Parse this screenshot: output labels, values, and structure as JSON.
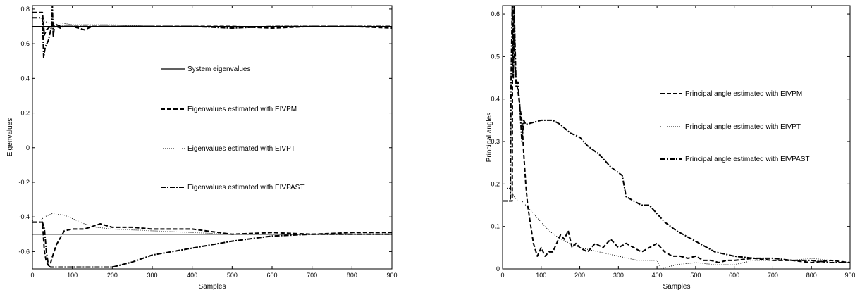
{
  "chart_data": [
    {
      "type": "line",
      "xlabel": "Samples",
      "ylabel": "Eigenvalues",
      "xlim": [
        0,
        900
      ],
      "ylim": [
        -0.7,
        0.82
      ],
      "xticks": [
        0,
        100,
        200,
        300,
        400,
        500,
        600,
        700,
        800,
        900
      ],
      "yticks": [
        -0.6,
        -0.4,
        -0.2,
        0,
        0.2,
        0.4,
        0.6,
        0.8
      ],
      "grid": false,
      "legend_position": "center-right",
      "series": [
        {
          "name": "System eigenvalues",
          "style": "solid",
          "lines": [
            {
              "x": [
                0,
                900
              ],
              "y": [
                0.7,
                0.7
              ]
            },
            {
              "x": [
                0,
                900
              ],
              "y": [
                -0.5,
                -0.5
              ]
            }
          ]
        },
        {
          "name": "Eigenvalues estimated with EIVPM",
          "style": "dashed",
          "lines": [
            {
              "x": [
                0,
                25,
                30,
                35,
                40,
                45,
                50,
                60,
                70,
                80,
                100,
                130,
                150,
                200,
                250,
                300,
                400,
                500,
                600,
                700,
                800,
                900
              ],
              "y": [
                0.78,
                0.78,
                0.65,
                0.68,
                0.69,
                0.7,
                0.71,
                0.7,
                0.69,
                0.7,
                0.7,
                0.68,
                0.7,
                0.7,
                0.7,
                0.7,
                0.7,
                0.7,
                0.69,
                0.7,
                0.7,
                0.69
              ]
            },
            {
              "x": [
                0,
                25,
                30,
                35,
                40,
                45,
                50,
                60,
                70,
                80,
                100,
                130,
                170,
                200,
                250,
                300,
                400,
                500,
                600,
                700,
                800,
                900
              ],
              "y": [
                -0.43,
                -0.43,
                -0.6,
                -0.66,
                -0.68,
                -0.67,
                -0.63,
                -0.56,
                -0.52,
                -0.48,
                -0.47,
                -0.47,
                -0.44,
                -0.46,
                -0.46,
                -0.47,
                -0.47,
                -0.5,
                -0.49,
                -0.5,
                -0.49,
                -0.49
              ]
            }
          ]
        },
        {
          "name": "Eigenvalues estimated with EIVPT",
          "style": "dotted",
          "lines": [
            {
              "x": [
                0,
                20,
                30,
                40,
                50,
                70,
                100,
                150,
                200,
                300,
                400,
                500,
                600,
                700,
                800,
                900
              ],
              "y": [
                0.75,
                0.75,
                0.73,
                0.72,
                0.72,
                0.72,
                0.71,
                0.71,
                0.71,
                0.7,
                0.7,
                0.7,
                0.7,
                0.7,
                0.7,
                0.7
              ]
            },
            {
              "x": [
                0,
                20,
                30,
                40,
                50,
                60,
                80,
                100,
                130,
                160,
                200,
                300,
                400,
                500,
                600,
                700,
                800,
                900
              ],
              "y": [
                -0.42,
                -0.42,
                -0.4,
                -0.39,
                -0.38,
                -0.385,
                -0.39,
                -0.41,
                -0.44,
                -0.46,
                -0.47,
                -0.48,
                -0.49,
                -0.5,
                -0.5,
                -0.5,
                -0.5,
                -0.5
              ]
            }
          ]
        },
        {
          "name": "Eigenvalues estimated with EIVPAST",
          "style": "dashdot",
          "lines": [
            {
              "x": [
                0,
                25,
                28,
                32,
                36,
                40,
                44,
                48,
                50,
                52,
                54,
                56,
                60,
                70,
                100,
                200,
                300,
                400,
                500,
                600,
                700,
                800,
                900
              ],
              "y": [
                0.75,
                0.75,
                0.52,
                0.58,
                0.6,
                0.62,
                0.66,
                0.7,
                0.82,
                0.64,
                0.68,
                0.7,
                0.71,
                0.7,
                0.7,
                0.7,
                0.7,
                0.7,
                0.69,
                0.7,
                0.7,
                0.7,
                0.7
              ]
            },
            {
              "x": [
                0,
                25,
                30,
                35,
                40,
                45,
                50,
                60,
                100,
                150,
                200,
                250,
                300,
                350,
                400,
                500,
                600,
                700,
                800,
                900
              ],
              "y": [
                -0.43,
                -0.43,
                -0.47,
                -0.6,
                -0.68,
                -0.69,
                -0.69,
                -0.69,
                -0.69,
                -0.69,
                -0.69,
                -0.66,
                -0.62,
                -0.6,
                -0.58,
                -0.54,
                -0.51,
                -0.5,
                -0.5,
                -0.5
              ]
            }
          ]
        }
      ]
    },
    {
      "type": "line",
      "xlabel": "Samples",
      "ylabel": "Principal angles",
      "xlim": [
        0,
        900
      ],
      "ylim": [
        0,
        0.62
      ],
      "xticks": [
        0,
        100,
        200,
        300,
        400,
        500,
        600,
        700,
        800,
        900
      ],
      "yticks": [
        0,
        0.1,
        0.2,
        0.3,
        0.4,
        0.5,
        0.6
      ],
      "grid": false,
      "legend_position": "center-right",
      "series": [
        {
          "name": "Principal angle estimated with EIVPM",
          "style": "dashed",
          "lines": [
            {
              "x": [
                0,
                25,
                26,
                30,
                35,
                40,
                45,
                50,
                55,
                60,
                65,
                70,
                80,
                90,
                100,
                110,
                120,
                130,
                140,
                150,
                160,
                170,
                180,
                190,
                200,
                220,
                240,
                260,
                280,
                300,
                320,
                340,
                360,
                380,
                400,
                420,
                440,
                460,
                480,
                500,
                520,
                540,
                560,
                580,
                600,
                650,
                700,
                750,
                800,
                850,
                900
              ],
              "y": [
                0.16,
                0.16,
                0.62,
                0.52,
                0.44,
                0.42,
                0.38,
                0.35,
                0.27,
                0.2,
                0.15,
                0.12,
                0.06,
                0.03,
                0.05,
                0.03,
                0.04,
                0.04,
                0.06,
                0.08,
                0.07,
                0.09,
                0.05,
                0.06,
                0.05,
                0.04,
                0.06,
                0.05,
                0.07,
                0.05,
                0.06,
                0.05,
                0.04,
                0.05,
                0.06,
                0.04,
                0.03,
                0.03,
                0.025,
                0.03,
                0.02,
                0.02,
                0.015,
                0.02,
                0.02,
                0.025,
                0.02,
                0.02,
                0.015,
                0.02,
                0.015
              ]
            }
          ]
        },
        {
          "name": "Principal angle estimated with EIVPT",
          "style": "dotted",
          "lines": [
            {
              "x": [
                0,
                20,
                30,
                40,
                50,
                60,
                70,
                80,
                100,
                120,
                150,
                200,
                250,
                300,
                350,
                400,
                410,
                450,
                500,
                550,
                600,
                650,
                700,
                750,
                800,
                850,
                900
              ],
              "y": [
                0.19,
                0.19,
                0.17,
                0.16,
                0.16,
                0.15,
                0.14,
                0.13,
                0.11,
                0.09,
                0.07,
                0.05,
                0.04,
                0.03,
                0.02,
                0.02,
                0.0,
                0.01,
                0.015,
                0.01,
                0.01,
                0.02,
                0.02,
                0.02,
                0.025,
                0.02,
                0.015
              ]
            }
          ]
        },
        {
          "name": "Principal angle estimated with EIVPAST",
          "style": "dashdot",
          "lines": [
            {
              "x": [
                0,
                20,
                22,
                25,
                28,
                30,
                35,
                40,
                45,
                50,
                55,
                60,
                80,
                100,
                130,
                150,
                175,
                200,
                220,
                250,
                280,
                310,
                320,
                340,
                360,
                380,
                400,
                420,
                450,
                500,
                550,
                600,
                650,
                700,
                750,
                800,
                850,
                900
              ],
              "y": [
                0.16,
                0.16,
                0.45,
                0.62,
                0.45,
                0.62,
                0.43,
                0.44,
                0.38,
                0.3,
                0.35,
                0.34,
                0.345,
                0.35,
                0.35,
                0.34,
                0.32,
                0.31,
                0.29,
                0.27,
                0.24,
                0.22,
                0.17,
                0.16,
                0.15,
                0.15,
                0.13,
                0.11,
                0.09,
                0.065,
                0.04,
                0.03,
                0.025,
                0.025,
                0.02,
                0.02,
                0.015,
                0.015
              ]
            }
          ]
        }
      ]
    }
  ]
}
